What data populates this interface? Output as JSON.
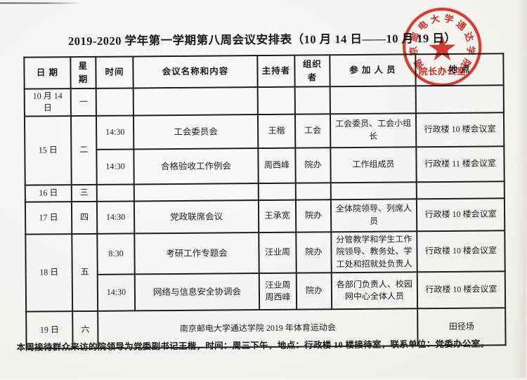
{
  "page": {
    "title": "2019-2020 学年第一学期第八周会议安排表（10 月 14 日——10 月 19 日）",
    "footer_note": "本周接待群众来访的院领导为党委副书记王楷，时间：周三下午，地点：行政楼 10 楼接待室，联系单位：党委办公室。"
  },
  "stamp": {
    "arc_text": "南京邮电大学通达学院",
    "center_text": "院长办公室",
    "star_icon": "★",
    "ink_color": "#c7261a"
  },
  "table": {
    "headers": [
      "日  期",
      "星期",
      "时间",
      "会议名称和内容",
      "主持者",
      "组织者",
      "参 加 人 员",
      "地  点"
    ],
    "rows": {
      "r1": {
        "date": "10 月 14 日",
        "week": "一"
      },
      "r2": {
        "date": "15 日",
        "week": "二",
        "m1": {
          "time": "14:30",
          "name": "工会委员会",
          "host": "王楷",
          "org": "工会",
          "attendees": "工会委员、工会小组长",
          "location": "行政楼 10 楼会议室"
        },
        "m2": {
          "time": "14:30",
          "name": "合格验收工作例会",
          "host": "周西峰",
          "org": "院办",
          "attendees": "工作组成员",
          "location": "行政楼 11 楼会议室"
        }
      },
      "r3": {
        "date": "16 日",
        "week": "三"
      },
      "r4": {
        "date": "17 日",
        "week": "四",
        "m1": {
          "time": "14:30",
          "name": "党政联席会议",
          "host": "王承宽",
          "org": "院办",
          "attendees": "全体院领导、列席人员",
          "location": "行政楼 10 楼会议室"
        }
      },
      "r5": {
        "date": "18 日",
        "week": "五",
        "m1": {
          "time": "8:30",
          "name": "考研工作专题会",
          "host": "汪业周",
          "org": "院办",
          "attendees": "分管教学和学生工作院领导、教务处、学工处和招就处负责人",
          "location": "行政楼 10 楼会议室"
        },
        "m2": {
          "time": "14:30",
          "name": "网络与信息安全协调会",
          "host": "汪业周 周西峰",
          "org": "院办",
          "attendees": "各部门负责人、校园网中心全体人员",
          "location": "行政楼 10 楼会议室"
        }
      },
      "r6": {
        "date": "19 日",
        "week": "六",
        "event": "南京邮电大学通达学院 2019 年体育运动会",
        "location": "田径场"
      }
    }
  }
}
